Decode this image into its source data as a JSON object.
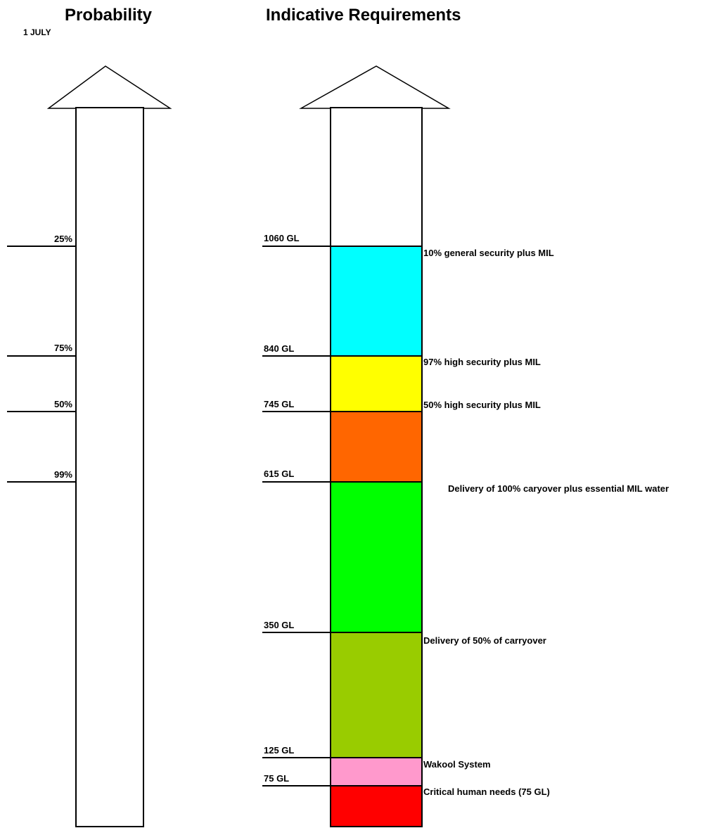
{
  "probability": {
    "title": "Probability",
    "subtitle": "1 JULY",
    "marks": [
      {
        "label": "25%"
      },
      {
        "label": "75%"
      },
      {
        "label": "50%"
      },
      {
        "label": "99%"
      }
    ]
  },
  "requirements": {
    "title": "Indicative Requirements",
    "levels": [
      {
        "label": "1060 GL",
        "volume_gl": 1060
      },
      {
        "label": "840 GL",
        "volume_gl": 840
      },
      {
        "label": "745 GL",
        "volume_gl": 745
      },
      {
        "label": "615 GL",
        "volume_gl": 615
      },
      {
        "label": "350 GL",
        "volume_gl": 350
      },
      {
        "label": "125 GL",
        "volume_gl": 125
      },
      {
        "label": "75 GL",
        "volume_gl": 75
      }
    ],
    "bands": [
      {
        "label": "10% general security plus MIL",
        "color": "#00ffff"
      },
      {
        "label": "97% high security plus MIL",
        "color": "#ffff00"
      },
      {
        "label": "50% high security plus MIL",
        "color": "#ff6600"
      },
      {
        "label": "Delivery of 100% caryover plus essential MIL water",
        "color": "#00ff00"
      },
      {
        "label": "Delivery of 50% of carryover",
        "color": "#99cc00"
      },
      {
        "label": "Wakool System",
        "color": "#ff99cc"
      },
      {
        "label": "Critical human needs (75 GL)",
        "color": "#ff0000"
      }
    ]
  }
}
